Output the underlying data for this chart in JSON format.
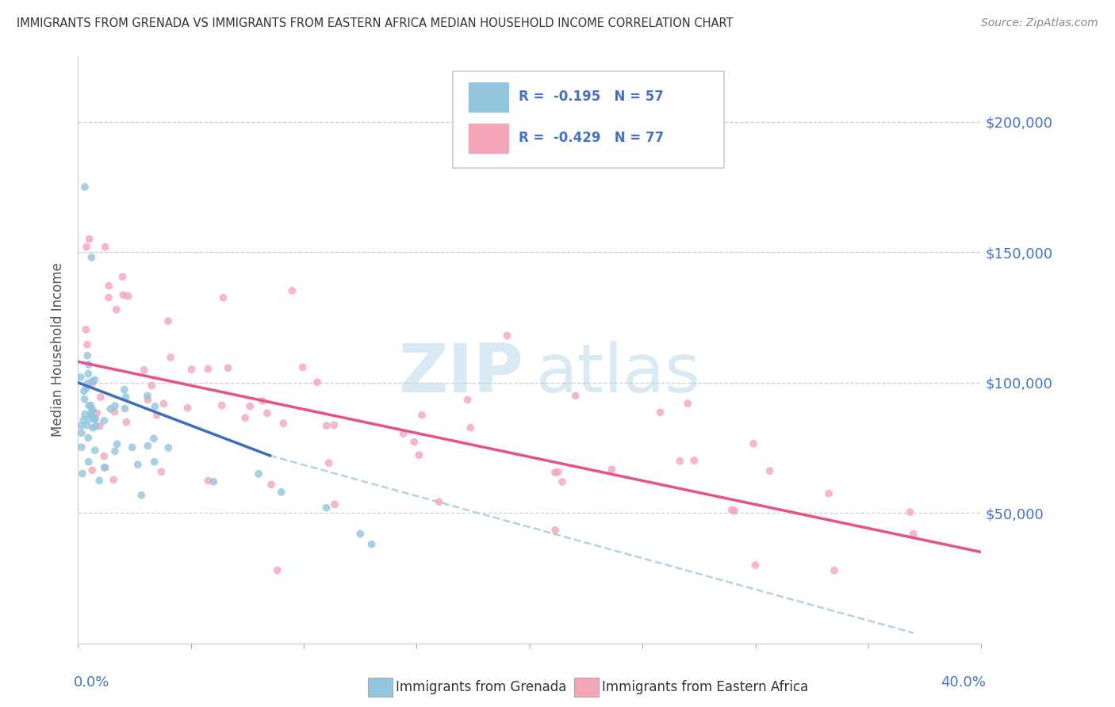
{
  "title": "IMMIGRANTS FROM GRENADA VS IMMIGRANTS FROM EASTERN AFRICA MEDIAN HOUSEHOLD INCOME CORRELATION CHART",
  "source": "Source: ZipAtlas.com",
  "ylabel": "Median Household Income",
  "xlim": [
    0.0,
    0.4
  ],
  "ylim": [
    0,
    225000
  ],
  "grenada_color": "#92c5de",
  "eastern_africa_color": "#f4a6b8",
  "grenada_line_color": "#3a6fbf",
  "eastern_africa_line_color": "#e8508a",
  "grenada_dash_color": "#aac9e0",
  "bg_color": "#ffffff",
  "grid_color": "#d0d0d0",
  "title_color": "#333333",
  "tick_color": "#4472c4",
  "watermark_color": "#daeaf5"
}
